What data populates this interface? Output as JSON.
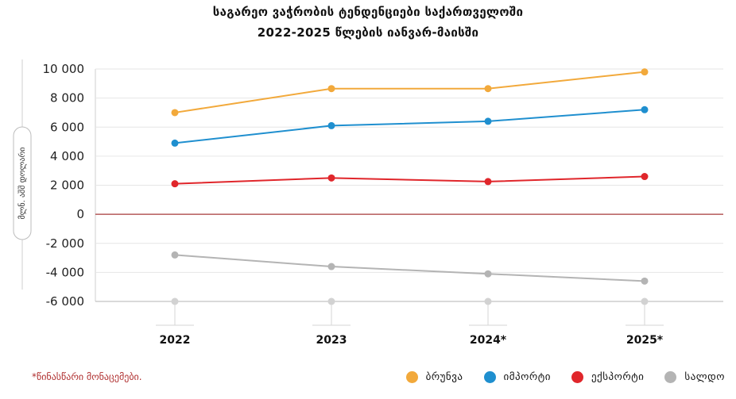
{
  "title_line1": "საგარეო  ვაჭრობის ტენდენციები საქართველოში",
  "title_line2": "2022-2025 წლების იანვარ-მაისში",
  "footnote": "*წინასწარი მონაცემები.",
  "chart_data": {
    "type": "line",
    "title": "საგარეო  ვაჭრობის ტენდენციები საქართველოში 2022-2025 წლების იანვარ-მაისში",
    "ylabel": "მლნ. აშშ დოლარი",
    "categories": [
      "2022",
      "2023",
      "2024*",
      "2025*"
    ],
    "ylim": [
      -6000,
      10000
    ],
    "yticks": [
      10000,
      8000,
      6000,
      4000,
      2000,
      0,
      -2000,
      -4000,
      -6000
    ],
    "ytick_labels": [
      "10 000",
      "8 000",
      "6 000",
      "4 000",
      "2 000",
      "0",
      "-2 000",
      "-4 000",
      "-6 000"
    ],
    "grid": true,
    "legend_position": "bottom-right",
    "series": [
      {
        "name": "ბრუნვა",
        "color": "#f2a93b",
        "values": [
          7000,
          8650,
          8650,
          9800
        ]
      },
      {
        "name": "იმპორტი",
        "color": "#1f8fcf",
        "values": [
          4900,
          6100,
          6400,
          7200
        ]
      },
      {
        "name": "ექსპორტი",
        "color": "#e0262b",
        "values": [
          2100,
          2500,
          2250,
          2600
        ]
      },
      {
        "name": "სალდო",
        "color": "#b4b4b4",
        "values": [
          -2800,
          -3600,
          -4100,
          -4600
        ]
      }
    ]
  }
}
